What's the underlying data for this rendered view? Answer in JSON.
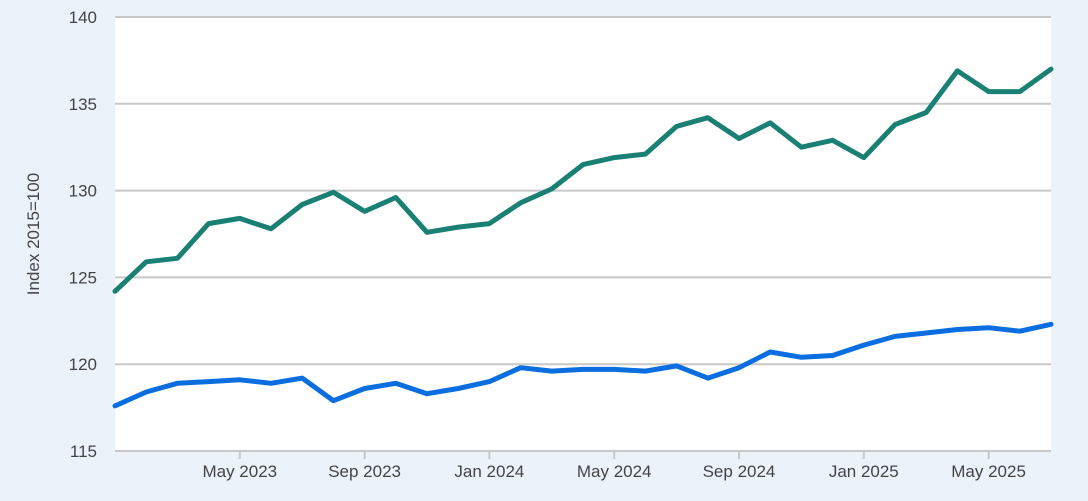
{
  "chart_data": {
    "type": "line",
    "title": "",
    "xlabel": "",
    "ylabel": "Index 2015=100",
    "ylim": [
      115,
      140
    ],
    "yticks": [
      115,
      120,
      125,
      130,
      135,
      140
    ],
    "xlim": [
      "2023-01",
      "2025-07"
    ],
    "xticks": [
      {
        "label": "May 2023",
        "value": "2023-05"
      },
      {
        "label": "Sep 2023",
        "value": "2023-09"
      },
      {
        "label": "Jan 2024",
        "value": "2024-01"
      },
      {
        "label": "May 2024",
        "value": "2024-05"
      },
      {
        "label": "Sep 2024",
        "value": "2024-09"
      },
      {
        "label": "Jan 2025",
        "value": "2025-01"
      },
      {
        "label": "May 2025",
        "value": "2025-05"
      }
    ],
    "grid": "horizontal",
    "legend": "none",
    "x": [
      "2023-01",
      "2023-02",
      "2023-03",
      "2023-04",
      "2023-05",
      "2023-06",
      "2023-07",
      "2023-08",
      "2023-09",
      "2023-10",
      "2023-11",
      "2023-12",
      "2024-01",
      "2024-02",
      "2024-03",
      "2024-04",
      "2024-05",
      "2024-06",
      "2024-07",
      "2024-08",
      "2024-09",
      "2024-10",
      "2024-11",
      "2024-12",
      "2025-01",
      "2025-02",
      "2025-03",
      "2025-04",
      "2025-05",
      "2025-06",
      "2025-07"
    ],
    "series": [
      {
        "color": "#1a8074",
        "values": [
          124.2,
          125.9,
          126.1,
          128.1,
          128.4,
          127.8,
          129.2,
          129.9,
          128.8,
          129.6,
          127.6,
          127.9,
          128.1,
          129.3,
          130.1,
          131.5,
          131.9,
          132.1,
          133.7,
          134.2,
          133.0,
          133.9,
          132.5,
          132.9,
          131.9,
          133.8,
          134.5,
          136.9,
          135.7,
          135.7,
          137.0
        ]
      },
      {
        "color": "#0b6ee0",
        "values": [
          117.6,
          118.4,
          118.9,
          119.0,
          119.1,
          118.9,
          119.2,
          117.9,
          118.6,
          118.9,
          118.3,
          118.6,
          119.0,
          119.8,
          119.6,
          119.7,
          119.7,
          119.6,
          119.9,
          119.2,
          119.8,
          120.7,
          120.4,
          120.5,
          121.1,
          121.6,
          121.8,
          122.0,
          122.1,
          121.9,
          122.3
        ]
      }
    ]
  }
}
